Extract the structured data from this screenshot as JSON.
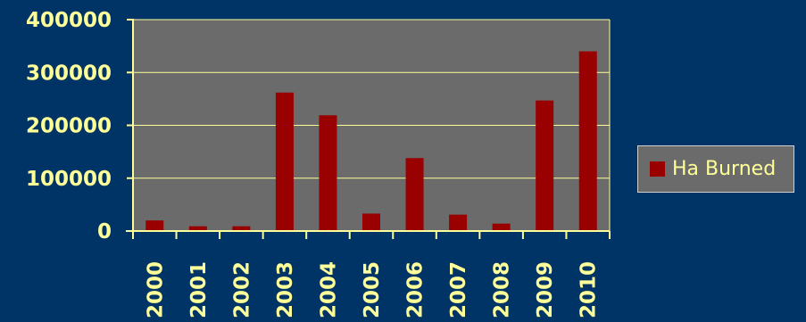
{
  "chart_data": {
    "type": "bar",
    "categories": [
      "2000",
      "2001",
      "2002",
      "2003",
      "2004",
      "2005",
      "2006",
      "2007",
      "2008",
      "2009",
      "2010"
    ],
    "series": [
      {
        "name": "Ha Burned",
        "values": [
          20000,
          9000,
          9000,
          262000,
          219000,
          33000,
          138000,
          31000,
          14000,
          247000,
          340000
        ],
        "color": "#990000"
      }
    ],
    "yticks": [
      "0",
      "100000",
      "200000",
      "300000",
      "400000"
    ],
    "ylim": [
      0,
      400000
    ],
    "grid": true,
    "legend": "right",
    "plot_background": "#6b6b6b",
    "gridline_color": "#ffff99",
    "text_color": "#ffff99",
    "page_background": "#003366"
  }
}
